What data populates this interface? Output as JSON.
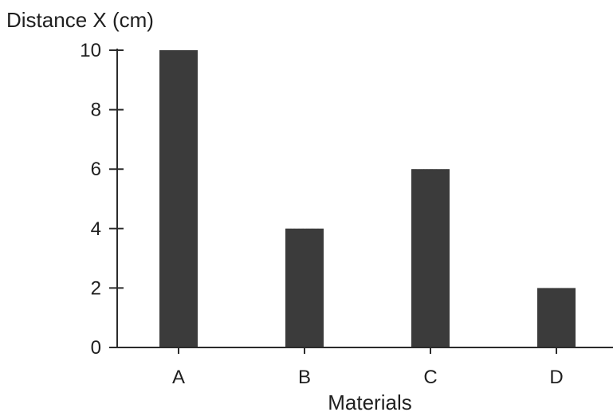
{
  "chart_data": {
    "type": "bar",
    "categories": [
      "A",
      "B",
      "C",
      "D"
    ],
    "values": [
      10,
      4,
      6,
      2
    ],
    "title": "",
    "xlabel": "Materials",
    "ylabel": "Distance X (cm)",
    "ylim": [
      0,
      10
    ],
    "yticks": [
      0,
      2,
      4,
      6,
      8,
      10
    ],
    "grid": false,
    "legend": "none",
    "bar_color": "#3a3a3a",
    "axis_color": "#2b2b2b"
  }
}
